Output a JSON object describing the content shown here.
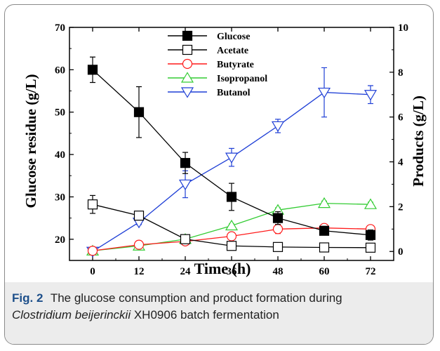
{
  "caption": {
    "fig_label": "Fig. 2",
    "text_line1": "The glucose consumption and product formation during",
    "species": "Clostridium beijerinckii",
    "text_line2": "XH0906 batch fermentation"
  },
  "chart_data": {
    "type": "line",
    "xlabel": "Time (h)",
    "ylabel_left": "Glucose residue (g/L)",
    "ylabel_right": "Products (g/L)",
    "x": [
      0,
      12,
      24,
      36,
      48,
      60,
      72
    ],
    "xlim": [
      -6,
      78
    ],
    "ylim_left": [
      15,
      70
    ],
    "ylim_right": [
      -0.4,
      10
    ],
    "xticks": [
      "0",
      "12",
      "24",
      "36",
      "48",
      "60",
      "72"
    ],
    "yticks_left": [
      "20",
      "30",
      "40",
      "50",
      "60",
      "70"
    ],
    "yticks_right": [
      "0",
      "2",
      "4",
      "6",
      "8",
      "10"
    ],
    "legend_position": "top-center",
    "series": [
      {
        "name": "Glucose",
        "axis": "left",
        "color": "#000000",
        "marker": "filled-square",
        "values": [
          60,
          50,
          38,
          30,
          25,
          22,
          21
        ],
        "errors": [
          3,
          6,
          2.5,
          3.2,
          1.5,
          0.8,
          1.2
        ]
      },
      {
        "name": "Acetate",
        "axis": "right",
        "color": "#000000",
        "marker": "open-square",
        "values": [
          2.1,
          1.6,
          0.55,
          0.25,
          0.2,
          0.18,
          0.17
        ],
        "errors": [
          0.4,
          0.15,
          0.1,
          0.05,
          0.05,
          0.05,
          0.05
        ]
      },
      {
        "name": "Butyrate",
        "axis": "right",
        "color": "#ff1a1a",
        "marker": "open-circle",
        "values": [
          0.03,
          0.3,
          0.45,
          0.68,
          1.0,
          1.05,
          1.0
        ],
        "errors": [
          0.05,
          0.08,
          0.08,
          0.1,
          0.2,
          0.1,
          0.15
        ]
      },
      {
        "name": "Isopropanol",
        "axis": "right",
        "color": "#33cc33",
        "marker": "open-triangle-up",
        "values": [
          0.03,
          0.25,
          0.55,
          1.15,
          1.85,
          2.15,
          2.1
        ],
        "errors": [
          0.05,
          0.05,
          0.06,
          0.08,
          0.1,
          0.1,
          0.1
        ]
      },
      {
        "name": "Butanol",
        "axis": "right",
        "color": "#1f3fd6",
        "marker": "open-triangle-down",
        "values": [
          0.0,
          1.3,
          3.0,
          4.2,
          5.6,
          7.1,
          7.0
        ],
        "errors": [
          0.05,
          0.1,
          0.6,
          0.4,
          0.3,
          1.1,
          0.4
        ]
      }
    ]
  }
}
